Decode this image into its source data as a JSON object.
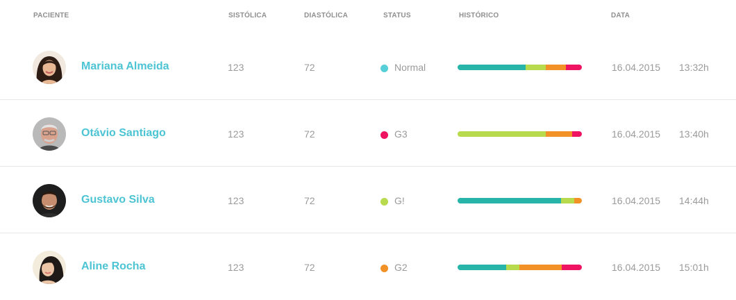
{
  "headers": {
    "patient": "PACIENTE",
    "systolic": "SISTÓLICA",
    "diastolic": "DIASTÓLICA",
    "status": "STATUS",
    "history": "HISTÓRICO",
    "date": "DATA"
  },
  "colors": {
    "teal": "#26b5a8",
    "lime": "#b7db4d",
    "orange": "#f19126",
    "pink": "#ee1461",
    "cyan": "#56cfd8",
    "name": "#4cc4d3"
  },
  "rows": [
    {
      "name": "Mariana Almeida",
      "systolic": "123",
      "diastolic": "72",
      "status": "Normal",
      "status_color": "#56cfd8",
      "date": "16.04.2015",
      "time": "13:32h",
      "history": [
        {
          "color": "#26b5a8",
          "fraction": 0.55
        },
        {
          "color": "#b7db4d",
          "fraction": 0.16
        },
        {
          "color": "#f19126",
          "fraction": 0.16
        },
        {
          "color": "#ee1461",
          "fraction": 0.13
        }
      ]
    },
    {
      "name": "Otávio Santiago",
      "systolic": "123",
      "diastolic": "72",
      "status": "G3",
      "status_color": "#ee1461",
      "date": "16.04.2015",
      "time": "13:40h",
      "history": [
        {
          "color": "#b7db4d",
          "fraction": 0.71
        },
        {
          "color": "#f19126",
          "fraction": 0.21
        },
        {
          "color": "#ee1461",
          "fraction": 0.08
        }
      ]
    },
    {
      "name": "Gustavo Silva",
      "systolic": "123",
      "diastolic": "72",
      "status": "G!",
      "status_color": "#b7db4d",
      "date": "16.04.2015",
      "time": "14:44h",
      "history": [
        {
          "color": "#26b5a8",
          "fraction": 0.83
        },
        {
          "color": "#b7db4d",
          "fraction": 0.11
        },
        {
          "color": "#f19126",
          "fraction": 0.06
        }
      ]
    },
    {
      "name": "Aline Rocha",
      "systolic": "123",
      "diastolic": "72",
      "status": "G2",
      "status_color": "#f19126",
      "date": "16.04.2015",
      "time": "15:01h",
      "history": [
        {
          "color": "#26b5a8",
          "fraction": 0.39
        },
        {
          "color": "#b7db4d",
          "fraction": 0.11
        },
        {
          "color": "#f19126",
          "fraction": 0.34
        },
        {
          "color": "#ee1461",
          "fraction": 0.16
        }
      ]
    }
  ]
}
